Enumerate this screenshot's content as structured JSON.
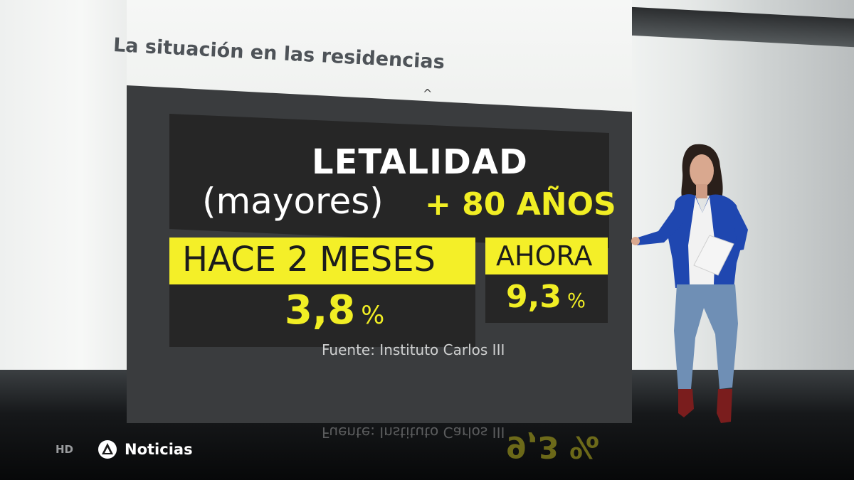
{
  "graphic": {
    "headline": "La situación en las residencias",
    "title_line1": "LETALIDAD",
    "title_line2_a": "(mayores)",
    "title_line2_b": "+ 80 AÑOS",
    "col_a_label": "HACE 2 MESES",
    "col_a_value": "3,8",
    "col_a_unit": "%",
    "col_b_label": "AHORA",
    "col_b_value": "9,3",
    "col_b_unit": "%",
    "source": "Fuente: Instituto Carlos III",
    "accent_color": "#f1ee24",
    "panel_color": "#262626"
  },
  "reflection": {
    "source": "Fuente: Instituto Carlos III",
    "value": "9,3 %"
  },
  "broadcast": {
    "hd_badge": "HD",
    "logo_text": "Noticias",
    "logo_icon": "antena3-triangle-icon"
  }
}
